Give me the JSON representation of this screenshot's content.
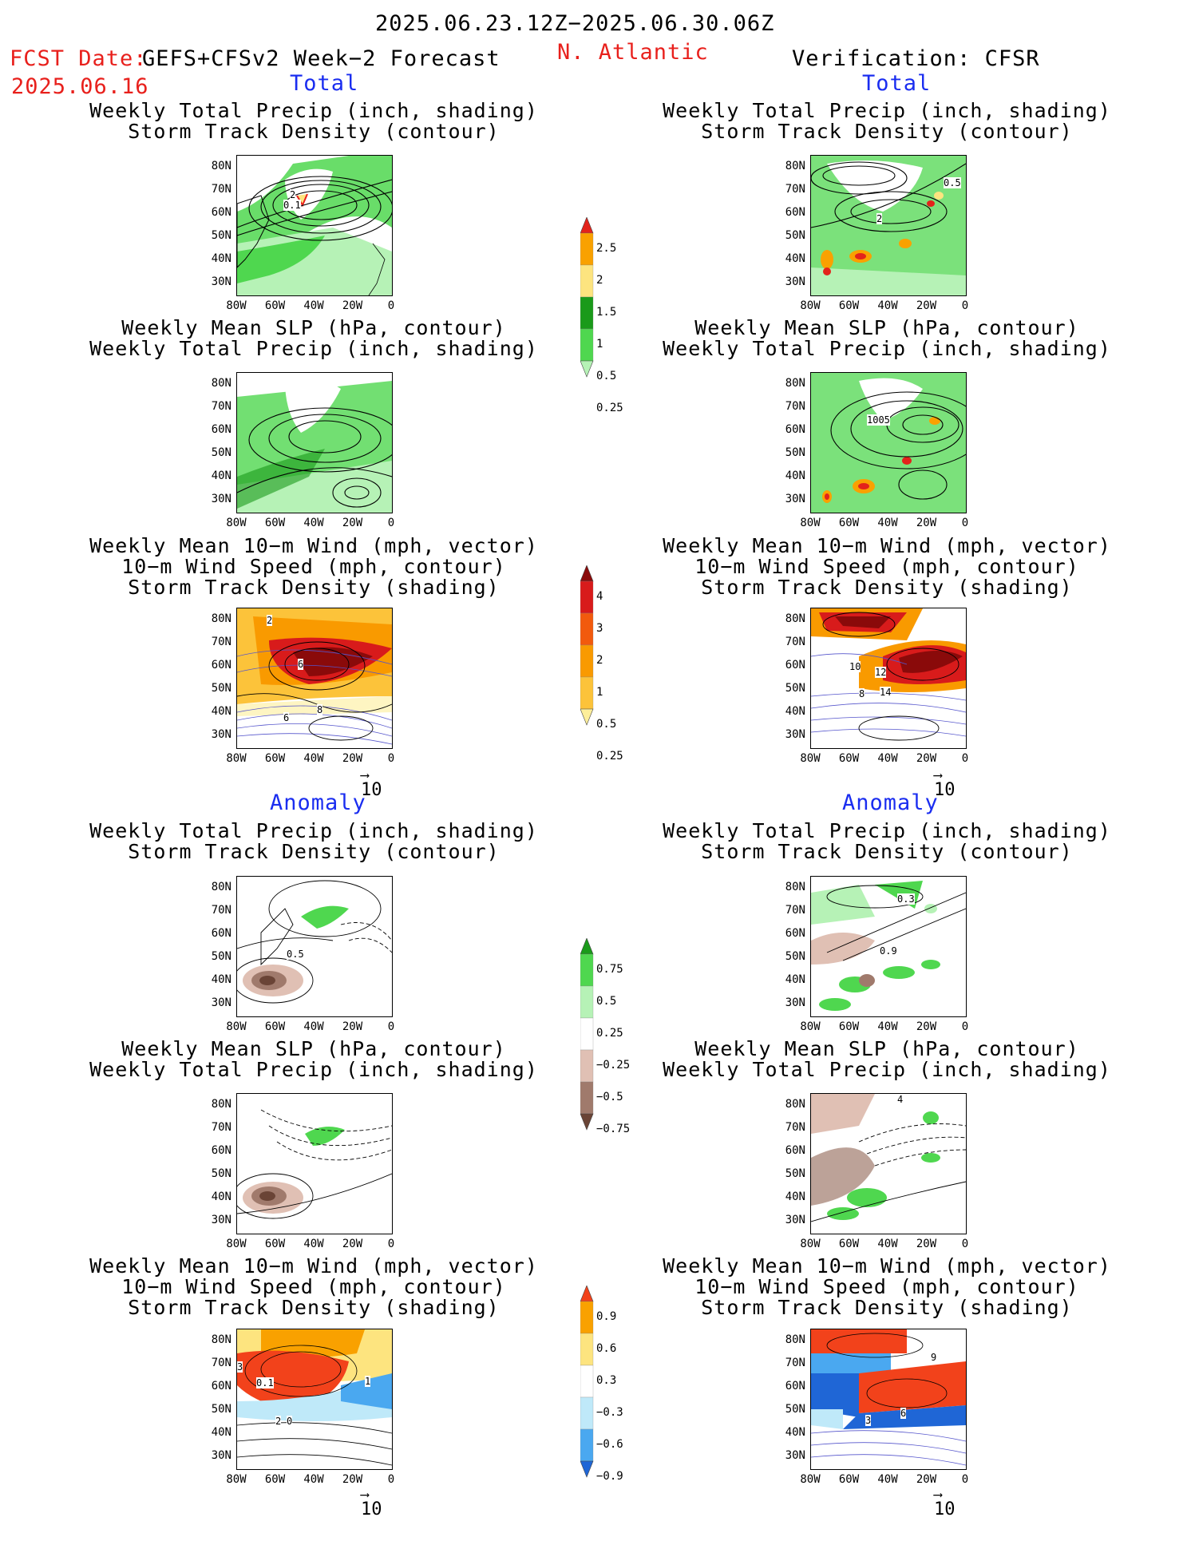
{
  "header": {
    "date_range": "2025.06.23.12Z−2025.06.30.06Z",
    "fcst_label": "FCST Date:",
    "forecast_model": "GEFS+CFSv2 Week−2 Forecast",
    "fcst_date": "2025.06.16",
    "region": "N. Atlantic",
    "verification": "Verification: CFSR"
  },
  "sections": {
    "total": "Total",
    "anomaly": "Anomaly"
  },
  "panel_titles": {
    "precip_track": [
      "Weekly Total Precip (inch, shading)",
      "Storm Track Density (contour)"
    ],
    "slp_precip": [
      "Weekly Mean SLP (hPa, contour)",
      "Weekly Total Precip (inch, shading)"
    ],
    "wind_track": [
      "Weekly Mean 10−m Wind (mph, vector)",
      "10−m Wind Speed (mph, contour)",
      "Storm Track Density (shading)"
    ]
  },
  "axes": {
    "lat_labels": [
      "80N",
      "70N",
      "60N",
      "50N",
      "40N",
      "30N"
    ],
    "lon_labels": [
      "80W",
      "60W",
      "40W",
      "20W",
      "0"
    ]
  },
  "vector_ref": "10",
  "colorbars": {
    "precip_total": {
      "labels": [
        "2.5",
        "2",
        "1.5",
        "1",
        "0.5",
        "0.25"
      ],
      "colors": [
        "#e3231b",
        "#f9a100",
        "#fde47f",
        "#1a9a1a",
        "#4fd74f",
        "#b6f2b6"
      ]
    },
    "track_total": {
      "labels": [
        "4",
        "3",
        "2",
        "1",
        "0.5",
        "0.25"
      ],
      "colors": [
        "#8a0a0a",
        "#d81b1b",
        "#f25a0d",
        "#f99a00",
        "#fcc33a",
        "#fdee9a"
      ]
    },
    "precip_anom": {
      "labels": [
        "0.75",
        "0.5",
        "0.25",
        "−0.25",
        "−0.5",
        "−0.75"
      ],
      "colors": [
        "#1a9a1a",
        "#4fd74f",
        "#b6f2b6",
        "#ffffff",
        "#e0c0b4",
        "#a07a6c",
        "#6a4436"
      ]
    },
    "track_anom": {
      "labels": [
        "0.9",
        "0.6",
        "0.3",
        "−0.3",
        "−0.6",
        "−0.9"
      ],
      "colors": [
        "#f2421b",
        "#f9a100",
        "#fde47f",
        "#ffffff",
        "#bfe9f9",
        "#4aa8f0",
        "#1f66d6"
      ]
    }
  },
  "map_contour_labels": {
    "l1": [
      "2",
      "0.1"
    ],
    "r1": [
      "0.5",
      "2"
    ],
    "r2": [
      "1005"
    ],
    "l3": [
      "2",
      "6",
      "6",
      "8"
    ],
    "r3": [
      "10",
      "12",
      "14",
      "8"
    ],
    "l4": [
      "0.5"
    ],
    "r4": [
      "0.3",
      "0.9"
    ],
    "r5": [
      "4"
    ],
    "l6": [
      "3",
      "0.1",
      "1",
      "2",
      "0"
    ],
    "r6": [
      "9",
      "6",
      "3"
    ]
  }
}
